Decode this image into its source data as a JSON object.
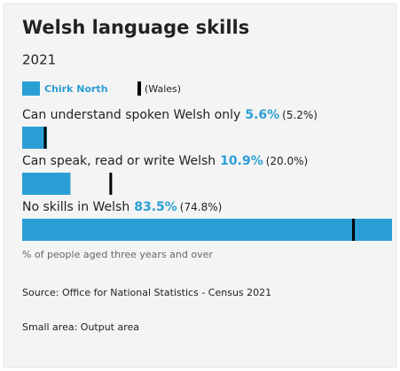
{
  "chart_data": {
    "type": "bar",
    "title": "Welsh language skills",
    "subtitle": "2021",
    "categories": [
      "Can understand spoken Welsh only",
      "Can speak, read or write Welsh",
      "No skills in Welsh"
    ],
    "series": [
      {
        "name": "Chirk North",
        "color": "#2a9fd6",
        "values": [
          5.6,
          10.9,
          83.5
        ],
        "value_labels": [
          "5.6%",
          "10.9%",
          "83.5%"
        ]
      },
      {
        "name": "(Wales)",
        "color": "#000000",
        "values": [
          5.2,
          20.0,
          74.8
        ],
        "value_labels": [
          "(5.2%)",
          "(20.0%)",
          "(74.8%)"
        ]
      }
    ],
    "xlim": [
      0,
      83.5
    ],
    "x_label": "% of people aged three years and over",
    "notes": [
      "Source: Office for National Statistics - Census 2021",
      "Small area: Output area"
    ]
  }
}
